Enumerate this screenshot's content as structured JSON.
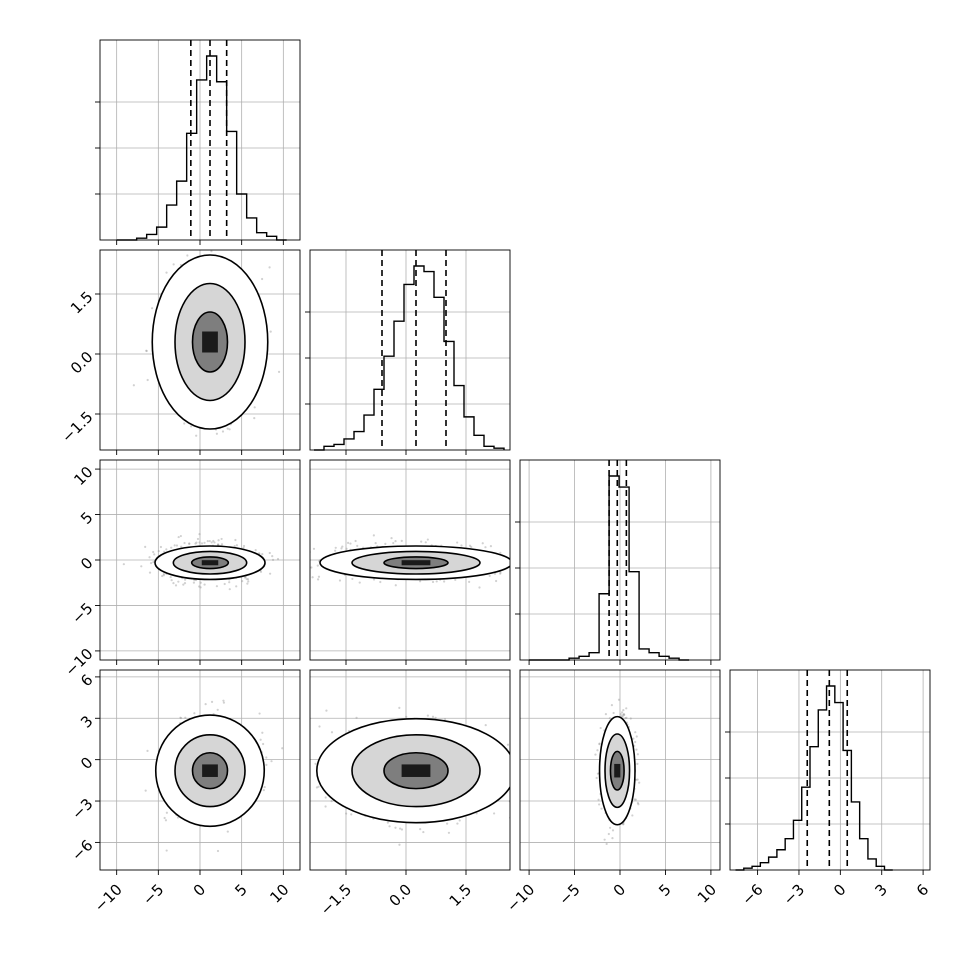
{
  "chart_data": {
    "type": "corner",
    "title": "",
    "dimensions": 4,
    "grid": true,
    "parameters": [
      {
        "index": 0,
        "range": [
          -12,
          12
        ],
        "ticks": [
          -10,
          -5,
          0,
          5,
          10
        ],
        "tick_labels": [
          "−10",
          "−5",
          "0",
          "5",
          "10"
        ]
      },
      {
        "index": 1,
        "range": [
          -2.4,
          2.6
        ],
        "ticks": [
          -1.5,
          0.0,
          1.5
        ],
        "tick_labels": [
          "−1.5",
          "0.0",
          "1.5"
        ]
      },
      {
        "index": 2,
        "range": [
          -11,
          11
        ],
        "ticks": [
          -10,
          -5,
          0,
          5,
          10
        ],
        "tick_labels": [
          "−10",
          "−5",
          "0",
          "5",
          "10"
        ]
      },
      {
        "index": 3,
        "range": [
          -8,
          6.5
        ],
        "ticks": [
          -6,
          -3,
          0,
          3,
          6
        ],
        "tick_labels": [
          "−6",
          "−3",
          "0",
          "3",
          "6"
        ]
      }
    ],
    "marginals": [
      {
        "param": 0,
        "quantiles": [
          -1.1,
          1.2,
          3.2
        ],
        "bins": [
          {
            "x0": -10.0,
            "x1": -8.8,
            "count": 0.0
          },
          {
            "x0": -8.8,
            "x1": -7.6,
            "count": 0.0
          },
          {
            "x0": -7.6,
            "x1": -6.4,
            "count": 0.01
          },
          {
            "x0": -6.4,
            "x1": -5.2,
            "count": 0.03
          },
          {
            "x0": -5.2,
            "x1": -4.0,
            "count": 0.07
          },
          {
            "x0": -4.0,
            "x1": -2.8,
            "count": 0.19
          },
          {
            "x0": -2.8,
            "x1": -1.6,
            "count": 0.32
          },
          {
            "x0": -1.6,
            "x1": -0.4,
            "count": 0.58
          },
          {
            "x0": -0.4,
            "x1": 0.8,
            "count": 0.87
          },
          {
            "x0": 0.8,
            "x1": 2.0,
            "count": 1.0
          },
          {
            "x0": 2.0,
            "x1": 3.2,
            "count": 0.86
          },
          {
            "x0": 3.2,
            "x1": 4.4,
            "count": 0.59
          },
          {
            "x0": 4.4,
            "x1": 5.6,
            "count": 0.25
          },
          {
            "x0": 5.6,
            "x1": 6.8,
            "count": 0.12
          },
          {
            "x0": 6.8,
            "x1": 8.0,
            "count": 0.04
          },
          {
            "x0": 8.0,
            "x1": 9.2,
            "count": 0.02
          },
          {
            "x0": 9.2,
            "x1": 10.4,
            "count": 0.0
          }
        ]
      },
      {
        "param": 1,
        "quantiles": [
          -0.6,
          0.25,
          1.0
        ],
        "bins": [
          {
            "x0": -2.3,
            "x1": -2.05,
            "count": 0.0
          },
          {
            "x0": -2.05,
            "x1": -1.8,
            "count": 0.02
          },
          {
            "x0": -1.8,
            "x1": -1.55,
            "count": 0.03
          },
          {
            "x0": -1.55,
            "x1": -1.3,
            "count": 0.06
          },
          {
            "x0": -1.3,
            "x1": -1.05,
            "count": 0.1
          },
          {
            "x0": -1.05,
            "x1": -0.8,
            "count": 0.19
          },
          {
            "x0": -0.8,
            "x1": -0.55,
            "count": 0.33
          },
          {
            "x0": -0.55,
            "x1": -0.3,
            "count": 0.51
          },
          {
            "x0": -0.3,
            "x1": -0.05,
            "count": 0.7
          },
          {
            "x0": -0.05,
            "x1": 0.2,
            "count": 0.9
          },
          {
            "x0": 0.2,
            "x1": 0.45,
            "count": 1.0
          },
          {
            "x0": 0.45,
            "x1": 0.7,
            "count": 0.97
          },
          {
            "x0": 0.7,
            "x1": 0.95,
            "count": 0.83
          },
          {
            "x0": 0.95,
            "x1": 1.2,
            "count": 0.59
          },
          {
            "x0": 1.2,
            "x1": 1.45,
            "count": 0.35
          },
          {
            "x0": 1.45,
            "x1": 1.7,
            "count": 0.18
          },
          {
            "x0": 1.7,
            "x1": 1.95,
            "count": 0.08
          },
          {
            "x0": 1.95,
            "x1": 2.2,
            "count": 0.02
          },
          {
            "x0": 2.2,
            "x1": 2.45,
            "count": 0.01
          }
        ]
      },
      {
        "param": 2,
        "quantiles": [
          -1.2,
          -0.3,
          0.7
        ],
        "bins": [
          {
            "x0": -10.0,
            "x1": -8.9,
            "count": 0.0
          },
          {
            "x0": -8.9,
            "x1": -7.8,
            "count": 0.0
          },
          {
            "x0": -7.8,
            "x1": -6.7,
            "count": 0.0
          },
          {
            "x0": -6.7,
            "x1": -5.6,
            "count": 0.0
          },
          {
            "x0": -5.6,
            "x1": -4.5,
            "count": 0.01
          },
          {
            "x0": -4.5,
            "x1": -3.4,
            "count": 0.02
          },
          {
            "x0": -3.4,
            "x1": -2.3,
            "count": 0.04
          },
          {
            "x0": -2.3,
            "x1": -1.2,
            "count": 0.36
          },
          {
            "x0": -1.2,
            "x1": -0.1,
            "count": 1.0
          },
          {
            "x0": -0.1,
            "x1": 1.0,
            "count": 0.94
          },
          {
            "x0": 1.0,
            "x1": 2.1,
            "count": 0.48
          },
          {
            "x0": 2.1,
            "x1": 3.2,
            "count": 0.06
          },
          {
            "x0": 3.2,
            "x1": 4.3,
            "count": 0.04
          },
          {
            "x0": 4.3,
            "x1": 5.4,
            "count": 0.02
          },
          {
            "x0": 5.4,
            "x1": 6.5,
            "count": 0.01
          },
          {
            "x0": 6.5,
            "x1": 7.6,
            "count": 0.0
          }
        ]
      },
      {
        "param": 3,
        "quantiles": [
          -2.4,
          -0.8,
          0.5
        ],
        "bins": [
          {
            "x0": -7.6,
            "x1": -7.0,
            "count": 0.0
          },
          {
            "x0": -7.0,
            "x1": -6.4,
            "count": 0.01
          },
          {
            "x0": -6.4,
            "x1": -5.8,
            "count": 0.02
          },
          {
            "x0": -5.8,
            "x1": -5.2,
            "count": 0.04
          },
          {
            "x0": -5.2,
            "x1": -4.6,
            "count": 0.07
          },
          {
            "x0": -4.6,
            "x1": -4.0,
            "count": 0.11
          },
          {
            "x0": -4.0,
            "x1": -3.4,
            "count": 0.17
          },
          {
            "x0": -3.4,
            "x1": -2.8,
            "count": 0.27
          },
          {
            "x0": -2.8,
            "x1": -2.2,
            "count": 0.45
          },
          {
            "x0": -2.2,
            "x1": -1.6,
            "count": 0.67
          },
          {
            "x0": -1.6,
            "x1": -1.0,
            "count": 0.87
          },
          {
            "x0": -1.0,
            "x1": -0.4,
            "count": 1.0
          },
          {
            "x0": -0.4,
            "x1": 0.2,
            "count": 0.91
          },
          {
            "x0": 0.2,
            "x1": 0.8,
            "count": 0.65
          },
          {
            "x0": 0.8,
            "x1": 1.4,
            "count": 0.37
          },
          {
            "x0": 1.4,
            "x1": 2.0,
            "count": 0.17
          },
          {
            "x0": 2.0,
            "x1": 2.6,
            "count": 0.06
          },
          {
            "x0": 2.6,
            "x1": 3.2,
            "count": 0.02
          },
          {
            "x0": 3.2,
            "x1": 3.8,
            "count": 0.0
          }
        ]
      }
    ],
    "joints": [
      {
        "x_param": 0,
        "y_param": 1,
        "mean": [
          1.2,
          0.3
        ],
        "sd": [
          2.1,
          0.75
        ],
        "contours": [
          {
            "sx": 1.0,
            "sy": 1.0
          },
          {
            "sx": 2.0,
            "sy": 1.95
          },
          {
            "sx": 3.3,
            "sy": 2.9
          }
        ]
      },
      {
        "x_param": 0,
        "y_param": 2,
        "mean": [
          1.2,
          -0.3
        ],
        "sd": [
          2.2,
          0.8
        ],
        "contours": [
          {
            "sx": 1.0,
            "sy": 0.8
          },
          {
            "sx": 2.0,
            "sy": 1.55
          },
          {
            "sx": 3.0,
            "sy": 2.3
          }
        ]
      },
      {
        "x_param": 1,
        "y_param": 2,
        "mean": [
          0.25,
          -0.3
        ],
        "sd": [
          0.8,
          0.8
        ],
        "contours": [
          {
            "sx": 1.0,
            "sy": 0.8
          },
          {
            "sx": 2.0,
            "sy": 1.55
          },
          {
            "sx": 3.0,
            "sy": 2.3
          }
        ]
      },
      {
        "x_param": 0,
        "y_param": 3,
        "mean": [
          1.2,
          -0.8
        ],
        "sd": [
          2.1,
          1.3
        ],
        "contours": [
          {
            "sx": 1.0,
            "sy": 1.0
          },
          {
            "sx": 2.0,
            "sy": 2.0
          },
          {
            "sx": 3.1,
            "sy": 3.1
          }
        ]
      },
      {
        "x_param": 1,
        "y_param": 3,
        "mean": [
          0.25,
          -0.8
        ],
        "sd": [
          0.8,
          1.3
        ],
        "contours": [
          {
            "sx": 1.0,
            "sy": 1.0
          },
          {
            "sx": 2.0,
            "sy": 2.0
          },
          {
            "sx": 3.1,
            "sy": 2.9
          }
        ]
      },
      {
        "x_param": 2,
        "y_param": 3,
        "mean": [
          -0.3,
          -0.8
        ],
        "sd": [
          0.75,
          1.4
        ],
        "contours": [
          {
            "sx": 1.0,
            "sy": 1.0
          },
          {
            "sx": 1.8,
            "sy": 1.9
          },
          {
            "sx": 2.6,
            "sy": 2.8
          }
        ]
      }
    ]
  }
}
